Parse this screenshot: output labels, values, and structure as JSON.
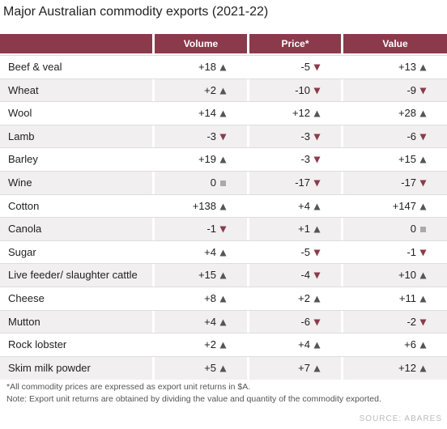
{
  "title": "Major Australian commodity exports (2021-22)",
  "table": {
    "columns": [
      "Volume",
      "Price*",
      "Value"
    ],
    "rows": [
      [
        "Beef & veal",
        "+18",
        "-5",
        "+13"
      ],
      [
        "Wheat",
        "+2",
        "-10",
        "-9"
      ],
      [
        "Wool",
        "+14",
        "+12",
        "+28"
      ],
      [
        "Lamb",
        "-3",
        "-3",
        "-6"
      ],
      [
        "Barley",
        "+19",
        "-3",
        "+15"
      ],
      [
        "Wine",
        "0",
        "-17",
        "-17"
      ],
      [
        "Cotton",
        "+138",
        "+4",
        "+147"
      ],
      [
        "Canola",
        "-1",
        "+1",
        "0"
      ],
      [
        "Sugar",
        "+4",
        "-5",
        "-1"
      ],
      [
        "Live feeder/ slaughter cattle",
        "+15",
        "-4",
        "+10"
      ],
      [
        "Cheese",
        "+8",
        "+2",
        "+11"
      ],
      [
        "Mutton",
        "+4",
        "-6",
        "-2"
      ],
      [
        "Rock lobster",
        "+2",
        "+4",
        "+6"
      ],
      [
        "Skim milk powder",
        "+5",
        "+7",
        "+12"
      ]
    ]
  },
  "notes": [
    "*All commodity prices are expressed as export unit returns in $A.",
    "Note: Export unit returns are obtained by dividing the value and quantity of the commodity exported."
  ],
  "source": "SOURCE: ABARES"
}
